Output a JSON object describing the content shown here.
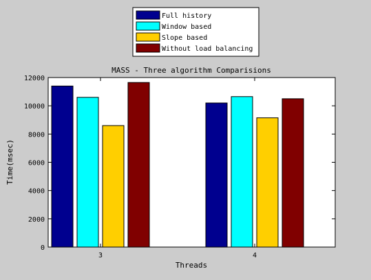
{
  "chart_data": {
    "type": "bar",
    "title": "MASS - Three algorithm Comparisions",
    "xlabel": "Threads",
    "ylabel": "Time(msec)",
    "categories": [
      "3",
      "4"
    ],
    "ylim": [
      0,
      12000
    ],
    "yticks": [
      0,
      2000,
      4000,
      6000,
      8000,
      10000,
      12000
    ],
    "grid": false,
    "legend_position": "top-center (outside, above axes)",
    "series": [
      {
        "name": "Full history",
        "color": "#00008f",
        "values": [
          11400,
          10200
        ]
      },
      {
        "name": "Window based",
        "color": "#00ffff",
        "values": [
          10600,
          10650
        ]
      },
      {
        "name": "Slope based",
        "color": "#ffcf00",
        "values": [
          8600,
          9150
        ]
      },
      {
        "name": "Without load balancing",
        "color": "#800000",
        "values": [
          11650,
          10500
        ]
      }
    ]
  },
  "colors": {
    "figure_background": "#cccccc",
    "axes_background": "#ffffff"
  }
}
